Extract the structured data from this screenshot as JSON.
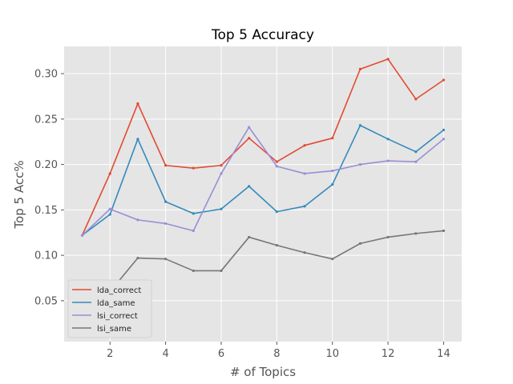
{
  "chart_data": {
    "type": "line",
    "title": "Top 5 Accuracy",
    "xlabel": "# of Topics",
    "ylabel": "Top 5 Acc%",
    "x": [
      1,
      2,
      3,
      4,
      5,
      6,
      7,
      8,
      9,
      10,
      11,
      12,
      13,
      14
    ],
    "xticks": [
      "2",
      "4",
      "6",
      "8",
      "10",
      "12",
      "14"
    ],
    "yticks": [
      "0.05",
      "0.10",
      "0.15",
      "0.20",
      "0.25",
      "0.30"
    ],
    "xlim": [
      0.35,
      14.65
    ],
    "ylim": [
      0.005,
      0.33
    ],
    "grid": true,
    "legend_position": "lower-left",
    "series": [
      {
        "name": "lda_correct",
        "color": "#e24a33",
        "values": [
          0.122,
          0.19,
          0.267,
          0.199,
          0.196,
          0.199,
          0.229,
          0.203,
          0.221,
          0.229,
          0.305,
          0.316,
          0.272,
          0.293
        ]
      },
      {
        "name": "lda_same",
        "color": "#348abd",
        "values": [
          0.122,
          0.145,
          0.228,
          0.159,
          0.146,
          0.151,
          0.176,
          0.148,
          0.154,
          0.178,
          0.243,
          0.228,
          0.214,
          0.238
        ]
      },
      {
        "name": "lsi_correct",
        "color": "#988ed5",
        "values": [
          0.122,
          0.151,
          0.139,
          0.135,
          0.127,
          0.19,
          0.241,
          0.198,
          0.19,
          0.193,
          0.2,
          0.204,
          0.203,
          0.228
        ]
      },
      {
        "name": "lsi_same",
        "color": "#777777",
        "values": [
          0.012,
          0.06,
          0.097,
          0.096,
          0.083,
          0.083,
          0.12,
          0.111,
          0.103,
          0.096,
          0.113,
          0.12,
          0.124,
          0.127
        ]
      }
    ]
  }
}
